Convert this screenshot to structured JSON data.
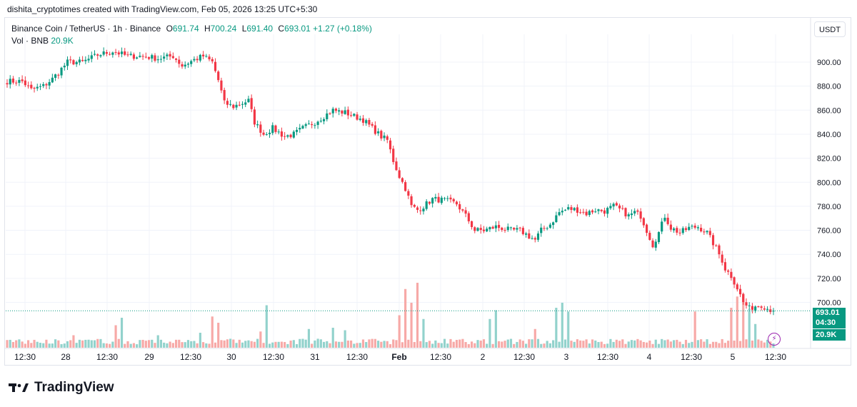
{
  "header": {
    "credit": "dishita_cryptotimes created with TradingView.com, Feb 05, 2026 13:25 UTC+5:30"
  },
  "legend": {
    "symbol": "Binance Coin / TetherUS · 1h · Binance",
    "o_label": "O",
    "o_value": "691.74",
    "h_label": "H",
    "h_value": "700.24",
    "l_label": "L",
    "l_value": "691.40",
    "c_label": "C",
    "c_value": "693.01",
    "change": "+1.27 (+0.18%)",
    "vol_label": "Vol · BNB",
    "vol_value": "20.9K"
  },
  "currency_button": "USDT",
  "badges": {
    "price": "693.01",
    "countdown": "04:30",
    "volume": "20.9K"
  },
  "brand": "TradingView",
  "colors": {
    "up": "#089981",
    "down": "#f23645",
    "vol_up": "#92d2cc",
    "vol_down": "#f7a9a7",
    "grid": "#f0f3fa"
  },
  "chart_data": {
    "type": "candlestick",
    "title": "Binance Coin / TetherUS · 1h · Binance",
    "ylim": [
      680,
      920
    ],
    "y_ticks": [
      700,
      720,
      740,
      760,
      780,
      800,
      820,
      840,
      860,
      880,
      900
    ],
    "y_tick_labels": [
      "700.00",
      "720.00",
      "740.00",
      "760.00",
      "780.00",
      "800.00",
      "820.00",
      "840.00",
      "860.00",
      "880.00",
      "900.00"
    ],
    "x_tick_labels": [
      "12:30",
      "28",
      "12:30",
      "29",
      "12:30",
      "30",
      "12:30",
      "31",
      "12:30",
      "Feb",
      "12:30",
      "2",
      "12:30",
      "3",
      "12:30",
      "4",
      "12:30",
      "5",
      "12:30"
    ],
    "last_price": 693.01,
    "grid": true,
    "anchors": [
      [
        0,
        884
      ],
      [
        5,
        884
      ],
      [
        8,
        877
      ],
      [
        12,
        880
      ],
      [
        15,
        886
      ],
      [
        20,
        900
      ],
      [
        25,
        900
      ],
      [
        30,
        906
      ],
      [
        35,
        909
      ],
      [
        40,
        905
      ],
      [
        45,
        905
      ],
      [
        50,
        903
      ],
      [
        55,
        905
      ],
      [
        58,
        897
      ],
      [
        62,
        902
      ],
      [
        65,
        905
      ],
      [
        68,
        900
      ],
      [
        70,
        885
      ],
      [
        72,
        866
      ],
      [
        75,
        863
      ],
      [
        80,
        868
      ],
      [
        82,
        850
      ],
      [
        85,
        840
      ],
      [
        88,
        845
      ],
      [
        92,
        838
      ],
      [
        95,
        840
      ],
      [
        98,
        845
      ],
      [
        102,
        850
      ],
      [
        105,
        855
      ],
      [
        108,
        860
      ],
      [
        112,
        858
      ],
      [
        115,
        855
      ],
      [
        118,
        852
      ],
      [
        121,
        845
      ],
      [
        124,
        838
      ],
      [
        126,
        835
      ],
      [
        128,
        818
      ],
      [
        130,
        805
      ],
      [
        132,
        795
      ],
      [
        134,
        780
      ],
      [
        136,
        777
      ],
      [
        138,
        780
      ],
      [
        141,
        786
      ],
      [
        145,
        785
      ],
      [
        149,
        782
      ],
      [
        152,
        772
      ],
      [
        155,
        760
      ],
      [
        158,
        760
      ],
      [
        162,
        763
      ],
      [
        167,
        760
      ],
      [
        170,
        760
      ],
      [
        173,
        755
      ],
      [
        175,
        752
      ],
      [
        177,
        760
      ],
      [
        180,
        765
      ],
      [
        183,
        775
      ],
      [
        186,
        778
      ],
      [
        189,
        777
      ],
      [
        192,
        774
      ],
      [
        195,
        777
      ],
      [
        198,
        776
      ],
      [
        201,
        780
      ],
      [
        204,
        776
      ],
      [
        206,
        772
      ],
      [
        208,
        775
      ],
      [
        210,
        772
      ],
      [
        212,
        760
      ],
      [
        214,
        748
      ],
      [
        216,
        758
      ],
      [
        218,
        772
      ],
      [
        220,
        762
      ],
      [
        223,
        758
      ],
      [
        226,
        762
      ],
      [
        229,
        763
      ],
      [
        232,
        758
      ],
      [
        235,
        745
      ],
      [
        237,
        735
      ],
      [
        238,
        728
      ],
      [
        240,
        722
      ],
      [
        242,
        712
      ],
      [
        244,
        700
      ],
      [
        246,
        695
      ],
      [
        248,
        697
      ],
      [
        250,
        698
      ],
      [
        252,
        695
      ],
      [
        254,
        693
      ]
    ],
    "n_candles": 255
  },
  "volume_data": {
    "spikes": [
      [
        22,
        1.0
      ],
      [
        36,
        1.8
      ],
      [
        38,
        2.4
      ],
      [
        50,
        1.0
      ],
      [
        64,
        1.2
      ],
      [
        68,
        2.5
      ],
      [
        70,
        2.0
      ],
      [
        84,
        1.3
      ],
      [
        86,
        3.4
      ],
      [
        100,
        1.5
      ],
      [
        108,
        1.6
      ],
      [
        112,
        1.4
      ],
      [
        130,
        2.6
      ],
      [
        132,
        4.7
      ],
      [
        134,
        3.6
      ],
      [
        136,
        5.2
      ],
      [
        138,
        2.3
      ],
      [
        160,
        2.3
      ],
      [
        162,
        3.0
      ],
      [
        175,
        1.5
      ],
      [
        182,
        3.2
      ],
      [
        184,
        3.6
      ],
      [
        186,
        2.9
      ],
      [
        228,
        2.9
      ],
      [
        240,
        3.2
      ],
      [
        242,
        4.1
      ],
      [
        244,
        4.3
      ],
      [
        246,
        3.1
      ],
      [
        248,
        1.9
      ]
    ]
  }
}
